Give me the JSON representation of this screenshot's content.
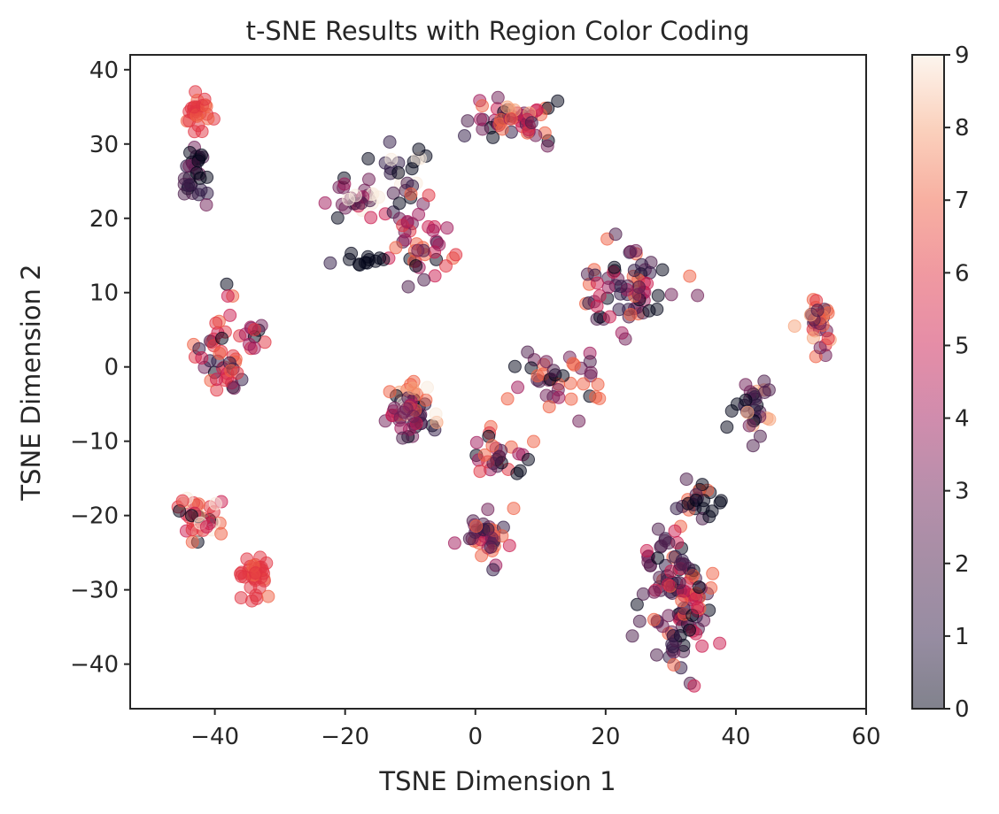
{
  "chart_data": {
    "type": "scatter",
    "title": "t-SNE Results with Region Color Coding",
    "xlabel": "TSNE Dimension 1",
    "ylabel": "TSNE Dimension 2",
    "xlim": [
      -53,
      60
    ],
    "ylim": [
      -46,
      42
    ],
    "xticks": [
      -40,
      -20,
      0,
      20,
      40,
      60
    ],
    "xtick_labels": [
      "−40",
      "−20",
      "0",
      "20",
      "40",
      "60"
    ],
    "yticks": [
      -40,
      -30,
      -20,
      -10,
      0,
      10,
      20,
      30,
      40
    ],
    "ytick_labels": [
      "−40",
      "−30",
      "−20",
      "−10",
      "0",
      "10",
      "20",
      "30",
      "40"
    ],
    "grid": false,
    "point_alpha": 0.5,
    "colorbar": {
      "range": [
        0,
        9
      ],
      "ticks": [
        0,
        1,
        2,
        3,
        4,
        5,
        6,
        7,
        8,
        9
      ],
      "tick_labels": [
        "0",
        "1",
        "2",
        "3",
        "4",
        "5",
        "6",
        "7",
        "8",
        "9"
      ],
      "colormap": "rocket",
      "stops": [
        "#03051a",
        "#2f1a45",
        "#4c1d4b",
        "#701f57",
        "#a11a5b",
        "#cb1b4f",
        "#e13342",
        "#f06043",
        "#f6a47c",
        "#faebdd"
      ]
    },
    "clusters": [
      {
        "center": [
          -42.5,
          34.5
        ],
        "spread": [
          1.2,
          2.2
        ],
        "n": 26,
        "regions": [
          6,
          6,
          6,
          7,
          6
        ]
      },
      {
        "center": [
          -43.0,
          26.0
        ],
        "spread": [
          1.5,
          3.0
        ],
        "n": 30,
        "regions": [
          0,
          0,
          1,
          2,
          3,
          2,
          0
        ]
      },
      {
        "center": [
          -39.0,
          2.0
        ],
        "spread": [
          2.8,
          4.5
        ],
        "n": 44,
        "regions": [
          0,
          2,
          3,
          5,
          6,
          7,
          6,
          1
        ]
      },
      {
        "center": [
          -34.0,
          4.0
        ],
        "spread": [
          1.2,
          3.0
        ],
        "n": 10,
        "regions": [
          3,
          0,
          4,
          6
        ]
      },
      {
        "center": [
          -42.0,
          -20.0
        ],
        "spread": [
          3.0,
          2.5
        ],
        "n": 42,
        "regions": [
          5,
          6,
          8,
          9,
          7,
          0,
          6
        ]
      },
      {
        "center": [
          -34.0,
          -27.5
        ],
        "spread": [
          1.8,
          2.2
        ],
        "n": 34,
        "regions": [
          6,
          6,
          7,
          6
        ]
      },
      {
        "center": [
          -10.0,
          -6.0
        ],
        "spread": [
          2.2,
          2.2
        ],
        "n": 60,
        "regions": [
          0,
          1,
          2,
          3,
          4,
          5,
          7,
          8,
          9
        ]
      },
      {
        "center": [
          -17.0,
          23.0
        ],
        "spread": [
          3.0,
          2.0
        ],
        "n": 28,
        "regions": [
          2,
          3,
          4,
          5,
          9,
          0
        ]
      },
      {
        "center": [
          -11.0,
          26.0
        ],
        "spread": [
          2.5,
          3.5
        ],
        "n": 24,
        "regions": [
          0,
          0,
          1,
          2,
          9
        ]
      },
      {
        "center": [
          -8.0,
          16.5
        ],
        "spread": [
          4.0,
          3.5
        ],
        "n": 42,
        "regions": [
          2,
          3,
          4,
          5,
          6,
          0,
          7
        ]
      },
      {
        "center": [
          -17.0,
          14.3
        ],
        "spread": [
          3.0,
          0.4
        ],
        "n": 12,
        "regions": [
          0,
          0,
          1
        ]
      },
      {
        "center": [
          5.0,
          33.0
        ],
        "spread": [
          5.5,
          2.2
        ],
        "n": 54,
        "regions": [
          0,
          2,
          3,
          4,
          5,
          7,
          8,
          1
        ]
      },
      {
        "center": [
          23.0,
          10.5
        ],
        "spread": [
          5.0,
          3.5
        ],
        "n": 70,
        "regions": [
          1,
          2,
          3,
          4,
          0,
          7,
          5
        ]
      },
      {
        "center": [
          13.0,
          -1.5
        ],
        "spread": [
          4.5,
          3.5
        ],
        "n": 40,
        "regions": [
          2,
          3,
          0,
          7,
          4
        ]
      },
      {
        "center": [
          3.5,
          -12.5
        ],
        "spread": [
          2.5,
          2.2
        ],
        "n": 28,
        "regions": [
          2,
          0,
          4,
          7,
          6
        ]
      },
      {
        "center": [
          1.5,
          -22.5
        ],
        "spread": [
          2.5,
          2.5
        ],
        "n": 40,
        "regions": [
          3,
          4,
          5,
          7,
          2,
          1
        ]
      },
      {
        "center": [
          31.0,
          -31.0
        ],
        "spread": [
          4.0,
          6.5
        ],
        "n": 120,
        "regions": [
          1,
          2,
          3,
          2,
          7,
          0,
          5
        ]
      },
      {
        "center": [
          34.5,
          -18.0
        ],
        "spread": [
          2.5,
          2.5
        ],
        "n": 24,
        "regions": [
          2,
          0,
          7,
          1
        ]
      },
      {
        "center": [
          42.5,
          -5.0
        ],
        "spread": [
          2.5,
          3.5
        ],
        "n": 30,
        "regions": [
          1,
          2,
          0,
          8,
          3
        ]
      },
      {
        "center": [
          52.5,
          6.0
        ],
        "spread": [
          1.8,
          2.5
        ],
        "n": 34,
        "regions": [
          7,
          6,
          2,
          3,
          8
        ]
      }
    ]
  }
}
